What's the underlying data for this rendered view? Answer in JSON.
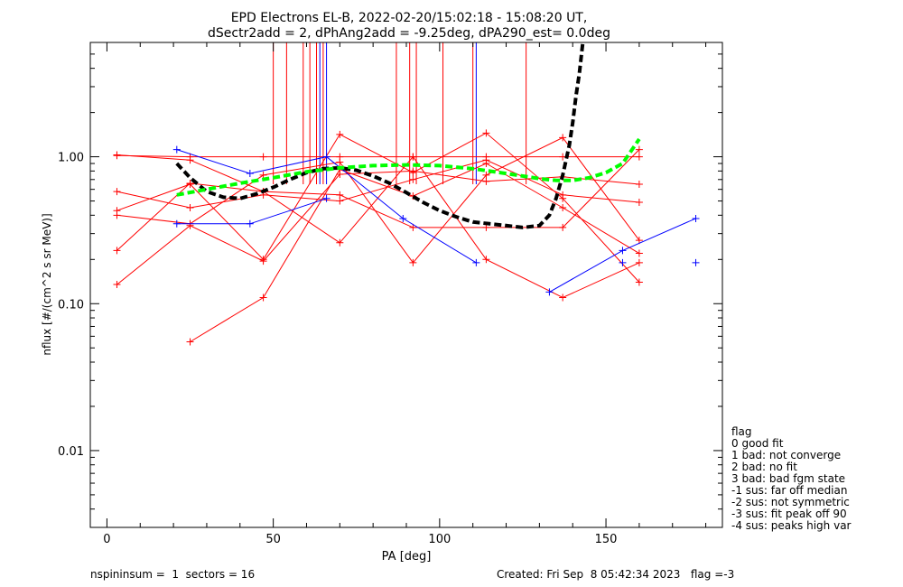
{
  "chart_data": {
    "type": "scatter",
    "title": "EPD Electrons EL-B, 2022-02-20/15:02:18 - 15:08:20 UT,",
    "subtitle": "dSectr2add = 2, dPhAng2add = -9.25deg, dPA290_est=   0.0deg",
    "xlabel": "PA [deg]",
    "ylabel": "nflux [#/(cm^2 s sr MeV)]",
    "xlim": [
      -5,
      185
    ],
    "ylim": [
      0.003,
      6.0
    ],
    "ylog": true,
    "x_ticks": [
      0,
      50,
      100,
      150
    ],
    "x_tick_labels": [
      "0",
      "50",
      "100",
      "150"
    ],
    "y_ticks": [
      0.01,
      0.1,
      1.0
    ],
    "y_tick_labels": [
      "0.01",
      "0.10",
      "1.00"
    ],
    "grid": false,
    "vertical_markers": {
      "red_x": [
        50,
        54,
        59,
        61,
        63,
        65,
        87,
        91,
        93,
        101,
        110,
        126
      ],
      "blue_x": [
        64,
        66,
        111
      ],
      "y_range": [
        0.65,
        6.0
      ]
    },
    "series": [
      {
        "color": "#ff0000",
        "points": [
          [
            3,
            1.02
          ],
          [
            25,
            1.0
          ],
          [
            47,
            1.0
          ],
          [
            70,
            1.0
          ],
          [
            92,
            1.0
          ],
          [
            114,
            1.0
          ],
          [
            137,
            1.0
          ],
          [
            160,
            1.0
          ]
        ]
      },
      {
        "color": "#ff0000",
        "points": [
          [
            3,
            0.58
          ],
          [
            25,
            0.45
          ],
          [
            47,
            0.55
          ],
          [
            70,
            0.5
          ],
          [
            92,
            0.7
          ],
          [
            114,
            0.95
          ],
          [
            137,
            0.55
          ],
          [
            160,
            0.49
          ]
        ]
      },
      {
        "color": "#ff0000",
        "points": [
          [
            3,
            0.43
          ],
          [
            25,
            0.65
          ],
          [
            47,
            0.2
          ],
          [
            70,
            1.42
          ],
          [
            92,
            0.78
          ],
          [
            114,
            1.45
          ],
          [
            137,
            0.52
          ],
          [
            160,
            0.14
          ]
        ]
      },
      {
        "color": "#ff0000",
        "points": [
          [
            3,
            0.4
          ],
          [
            25,
            0.35
          ],
          [
            47,
            0.75
          ],
          [
            70,
            0.92
          ],
          [
            92,
            0.19
          ],
          [
            114,
            0.75
          ],
          [
            137,
            1.35
          ],
          [
            160,
            0.27
          ]
        ]
      },
      {
        "color": "#ff0000",
        "points": [
          [
            3,
            0.23
          ],
          [
            25,
            0.66
          ],
          [
            47,
            0.58
          ],
          [
            70,
            0.26
          ],
          [
            92,
            1.0
          ],
          [
            114,
            0.2
          ],
          [
            137,
            0.11
          ],
          [
            160,
            0.19
          ]
        ]
      },
      {
        "color": "#ff0000",
        "points": [
          [
            3,
            0.135
          ],
          [
            25,
            0.34
          ],
          [
            47,
            0.195
          ],
          [
            70,
            0.76
          ],
          [
            92,
            0.8
          ],
          [
            114,
            0.68
          ],
          [
            137,
            0.73
          ],
          [
            160,
            0.65
          ]
        ]
      },
      {
        "color": "#ff0000",
        "points": [
          [
            25,
            0.055
          ],
          [
            47,
            0.11
          ],
          [
            70,
            0.82
          ],
          [
            92,
            0.54
          ],
          [
            114,
            0.9
          ],
          [
            137,
            0.45
          ],
          [
            160,
            0.22
          ]
        ]
      },
      {
        "color": "#ff0000",
        "points": [
          [
            3,
            1.03
          ],
          [
            25,
            0.95
          ],
          [
            47,
            0.58
          ],
          [
            70,
            0.55
          ],
          [
            92,
            0.33
          ],
          [
            114,
            0.33
          ],
          [
            137,
            0.33
          ],
          [
            160,
            1.12
          ]
        ]
      },
      {
        "color": "#0000ff",
        "points": [
          [
            21,
            1.12
          ],
          [
            43,
            0.77
          ],
          [
            66,
            1.0
          ],
          [
            89,
            0.38
          ],
          [
            111,
            0.19
          ]
        ]
      },
      {
        "color": "#0000ff",
        "points": [
          [
            21,
            0.35
          ],
          [
            43,
            0.35
          ],
          [
            66,
            0.52
          ]
        ]
      },
      {
        "color": "#0000ff",
        "points": [
          [
            133,
            0.12
          ],
          [
            155,
            0.23
          ],
          [
            177,
            0.38
          ]
        ]
      },
      {
        "color": "#0000ff",
        "points": [
          [
            155,
            0.19
          ]
        ]
      },
      {
        "color": "#0000ff",
        "points": [
          [
            177,
            0.19
          ]
        ]
      }
    ],
    "fit_curves": [
      {
        "color": "#000000",
        "style": "dashed",
        "points": [
          [
            21,
            0.9
          ],
          [
            25,
            0.72
          ],
          [
            30,
            0.58
          ],
          [
            35,
            0.53
          ],
          [
            40,
            0.52
          ],
          [
            45,
            0.56
          ],
          [
            50,
            0.62
          ],
          [
            55,
            0.7
          ],
          [
            60,
            0.78
          ],
          [
            65,
            0.83
          ],
          [
            70,
            0.84
          ],
          [
            75,
            0.81
          ],
          [
            80,
            0.74
          ],
          [
            85,
            0.66
          ],
          [
            90,
            0.57
          ],
          [
            95,
            0.49
          ],
          [
            100,
            0.43
          ],
          [
            105,
            0.39
          ],
          [
            110,
            0.36
          ],
          [
            115,
            0.35
          ],
          [
            120,
            0.34
          ],
          [
            125,
            0.33
          ],
          [
            130,
            0.34
          ],
          [
            133,
            0.4
          ],
          [
            135,
            0.52
          ],
          [
            137,
            0.75
          ],
          [
            139,
            1.2
          ],
          [
            140,
            1.7
          ],
          [
            141,
            2.6
          ],
          [
            142,
            3.7
          ],
          [
            143,
            5.9
          ]
        ]
      },
      {
        "color": "#00ff00",
        "style": "dashed",
        "points": [
          [
            21,
            0.55
          ],
          [
            30,
            0.6
          ],
          [
            40,
            0.66
          ],
          [
            50,
            0.72
          ],
          [
            60,
            0.79
          ],
          [
            70,
            0.84
          ],
          [
            80,
            0.87
          ],
          [
            90,
            0.88
          ],
          [
            100,
            0.87
          ],
          [
            110,
            0.83
          ],
          [
            120,
            0.77
          ],
          [
            130,
            0.71
          ],
          [
            135,
            0.69
          ],
          [
            140,
            0.69
          ],
          [
            145,
            0.72
          ],
          [
            150,
            0.78
          ],
          [
            155,
            0.9
          ],
          [
            160,
            1.32
          ]
        ]
      }
    ]
  },
  "legend": {
    "heading": "flag",
    "items": [
      " 0 good fit",
      " 1 bad: not converge",
      " 2 bad: no fit",
      " 3 bad: bad fgm state",
      "-1 sus: far off median",
      "-2 sus: not symmetric",
      "-3 sus: fit peak off 90",
      "-4 sus: peaks high var"
    ]
  },
  "footer": {
    "left": "nspininsum =  1  sectors = 16",
    "right": "Created: Fri Sep  8 05:42:34 2023   flag =-3"
  }
}
